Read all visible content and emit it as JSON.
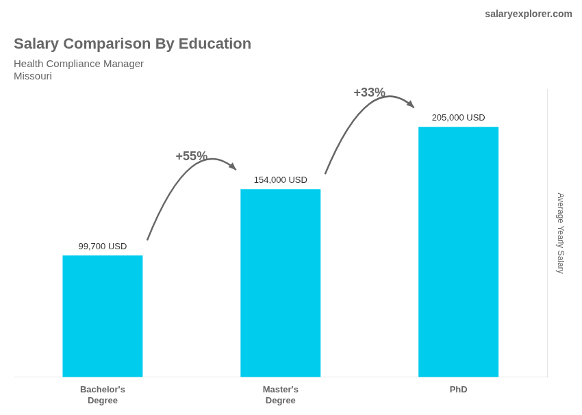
{
  "chart_data": {
    "type": "bar",
    "title": "Salary Comparison By Education",
    "subtitle": [
      "Health Compliance Manager",
      "Missouri"
    ],
    "categories": [
      "Bachelor's\nDegree",
      "Master's\nDegree",
      "PhD"
    ],
    "values": [
      99700,
      154000,
      205000
    ],
    "value_labels": [
      "99,700 USD",
      "154,000 USD",
      "205,000 USD"
    ],
    "data_labels": true,
    "color": "#00ccee",
    "ylabel": "Average Yearly Salary",
    "ylim": [
      0,
      235750
    ],
    "grid": false,
    "tick_labels": "x",
    "annotations": [
      {
        "text": "+55%",
        "from": "Bachelor's\nDegree",
        "to": "Master's\nDegree"
      },
      {
        "text": "+33%",
        "from": "Master's\nDegree",
        "to": "PhD"
      },
      {
        "text": "salaryexplorer.com"
      }
    ]
  }
}
